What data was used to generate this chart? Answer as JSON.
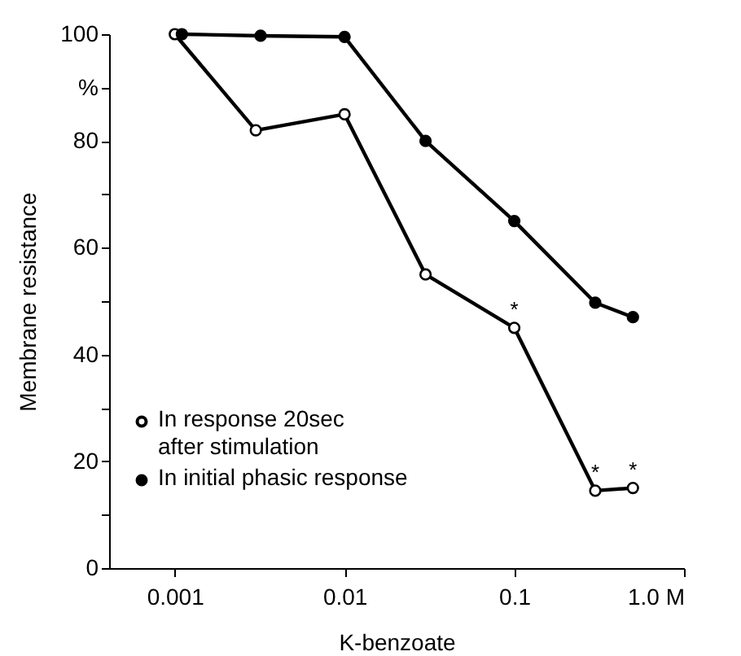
{
  "chart_data": {
    "type": "line",
    "xlabel": "K-benzoate",
    "ylabel": "Membrane resistance",
    "log": "x",
    "grid": false,
    "legend": "bottom left",
    "marker": "circle",
    "line_style": "solid",
    "xlim": [
      0.00041,
      1.0
    ],
    "xticks": [
      0.001,
      0.01,
      0.1,
      {
        "value": 1.0,
        "label": "1.0 M"
      }
    ],
    "ylim": [
      0,
      100
    ],
    "yticks": [
      0,
      {
        "value": 10,
        "label": null
      },
      20,
      {
        "value": 30,
        "label": null
      },
      40,
      {
        "value": 50,
        "label": null
      },
      60,
      {
        "value": 70,
        "label": null
      },
      80,
      {
        "value": 90,
        "label": "%"
      },
      100
    ],
    "series": [
      {
        "name": "In response 20sec\nafter stimulation",
        "color": "#000000",
        "x": [
          0.001,
          0.003,
          0.01,
          0.03,
          0.1,
          0.3,
          0.5
        ],
        "values": [
          100,
          82,
          85,
          55,
          45,
          14.5,
          15
        ]
      },
      {
        "name": "In initial phasic response",
        "color": "#000000",
        "x": [
          0.0011,
          0.0032,
          0.01,
          0.03,
          0.1,
          0.3,
          0.5
        ],
        "values": [
          100,
          99.7,
          99.5,
          80,
          65,
          49.7,
          47
        ]
      }
    ],
    "annotations": [
      {
        "text": "*",
        "x": 0.1,
        "y": 45
      },
      {
        "text": "*",
        "x": 0.3,
        "y": 14.5
      },
      {
        "text": "*",
        "x": 0.5,
        "y": 15
      }
    ]
  }
}
